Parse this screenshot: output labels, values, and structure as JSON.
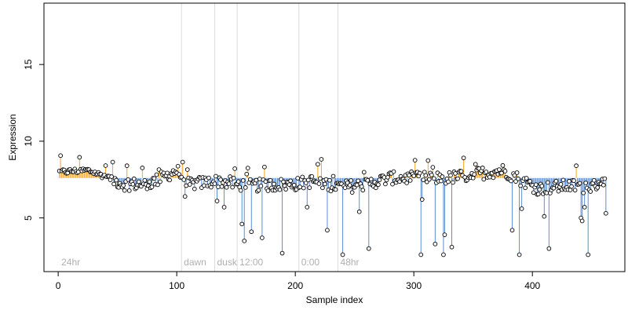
{
  "chart_data": {
    "type": "scatter",
    "xlabel": "Sample index",
    "ylabel": "Expression",
    "xlim": [
      -12,
      478
    ],
    "ylim": [
      1.5,
      19
    ],
    "x_ticks": [
      0,
      100,
      200,
      300,
      400
    ],
    "y_ticks": [
      5,
      10,
      15
    ],
    "baseline": 7.6,
    "colors": {
      "above": "#f5a623",
      "below": "#5b8ed6",
      "segment_lines": "#dcdcdc",
      "point_edge": "#000000",
      "point_fill": "#ffffff",
      "axis": "#000000",
      "region_label": "#b0b0b0"
    },
    "segments": [
      {
        "label": "24hr",
        "start": 0
      },
      {
        "label": "dawn",
        "start": 104
      },
      {
        "label": "dusk",
        "start": 132
      },
      {
        "label": "12:00",
        "start": 151
      },
      {
        "label": "0:00",
        "start": 203
      },
      {
        "label": "48hr",
        "start": 236
      }
    ],
    "outliers": [
      {
        "x": 107,
        "y": 6.4
      },
      {
        "x": 134,
        "y": 6.1
      },
      {
        "x": 140,
        "y": 5.7
      },
      {
        "x": 155,
        "y": 4.6
      },
      {
        "x": 157,
        "y": 3.5
      },
      {
        "x": 163,
        "y": 4.1
      },
      {
        "x": 172,
        "y": 3.7
      },
      {
        "x": 189,
        "y": 2.7
      },
      {
        "x": 210,
        "y": 5.7
      },
      {
        "x": 227,
        "y": 4.2
      },
      {
        "x": 240,
        "y": 2.6
      },
      {
        "x": 254,
        "y": 5.4
      },
      {
        "x": 262,
        "y": 3.0
      },
      {
        "x": 306,
        "y": 2.6
      },
      {
        "x": 307,
        "y": 6.2
      },
      {
        "x": 318,
        "y": 3.3
      },
      {
        "x": 325,
        "y": 2.6
      },
      {
        "x": 326,
        "y": 3.9
      },
      {
        "x": 332,
        "y": 3.1
      },
      {
        "x": 383,
        "y": 4.2
      },
      {
        "x": 389,
        "y": 2.6
      },
      {
        "x": 391,
        "y": 5.6
      },
      {
        "x": 410,
        "y": 5.1
      },
      {
        "x": 414,
        "y": 3.0
      },
      {
        "x": 441,
        "y": 5.0
      },
      {
        "x": 442,
        "y": 4.8
      },
      {
        "x": 444,
        "y": 5.7
      },
      {
        "x": 447,
        "y": 2.6
      },
      {
        "x": 462,
        "y": 5.3
      }
    ],
    "trend_knots": [
      {
        "x": 1,
        "y": 8.0
      },
      {
        "x": 25,
        "y": 8.1
      },
      {
        "x": 40,
        "y": 7.7
      },
      {
        "x": 55,
        "y": 7.2
      },
      {
        "x": 75,
        "y": 7.2
      },
      {
        "x": 90,
        "y": 7.7
      },
      {
        "x": 100,
        "y": 8.1
      },
      {
        "x": 110,
        "y": 7.2
      },
      {
        "x": 135,
        "y": 7.4
      },
      {
        "x": 160,
        "y": 7.1
      },
      {
        "x": 200,
        "y": 7.2
      },
      {
        "x": 215,
        "y": 7.4
      },
      {
        "x": 240,
        "y": 7.0
      },
      {
        "x": 260,
        "y": 7.2
      },
      {
        "x": 280,
        "y": 7.6
      },
      {
        "x": 310,
        "y": 7.6
      },
      {
        "x": 330,
        "y": 7.6
      },
      {
        "x": 355,
        "y": 7.9
      },
      {
        "x": 375,
        "y": 8.1
      },
      {
        "x": 390,
        "y": 7.5
      },
      {
        "x": 405,
        "y": 6.9
      },
      {
        "x": 430,
        "y": 7.1
      },
      {
        "x": 450,
        "y": 7.0
      },
      {
        "x": 462,
        "y": 7.6
      }
    ],
    "n_points": 462
  }
}
